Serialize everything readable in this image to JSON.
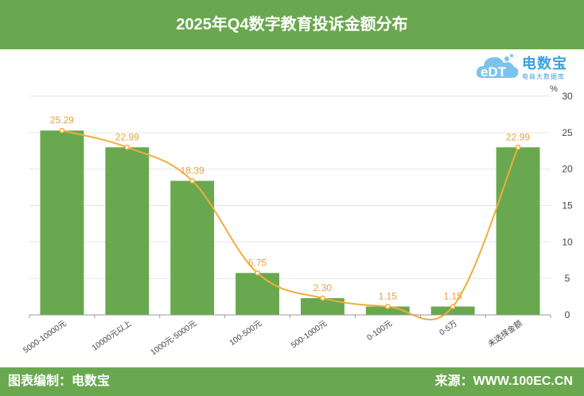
{
  "title": "2025年Q4数字教育投诉金额分布",
  "footer": {
    "left": "图表编制：电数宝",
    "right": "来源：WWW.100EC.CN"
  },
  "logo": {
    "mark": "eDT",
    "name": "电数宝",
    "sub": "电商大数据库"
  },
  "chart_data": {
    "type": "bar",
    "categories": [
      "5000-10000元",
      "10000元以上",
      "1000元-5000元",
      "100-500元",
      "500-1000元",
      "0-100元",
      "0-5万",
      "未选择金额"
    ],
    "series": [
      {
        "type": "bar",
        "values": [
          25.29,
          22.99,
          18.39,
          5.75,
          2.3,
          1.15,
          1.15,
          22.99
        ],
        "color": "#69a84f"
      },
      {
        "type": "line",
        "values": [
          25.29,
          22.99,
          18.39,
          5.75,
          2.3,
          1.15,
          1.15,
          22.99
        ],
        "color": "#f0ad3c"
      }
    ],
    "data_labels": [
      "25.29",
      "22.99",
      "18.39",
      "5.75",
      "2.30",
      "1.15",
      "1.15",
      "22.99"
    ],
    "y_unit": "%",
    "ylim": [
      0,
      30
    ],
    "yticks": [
      0,
      5,
      10,
      15,
      20,
      25,
      30
    ],
    "y_axis_side": "right",
    "grid": true
  }
}
